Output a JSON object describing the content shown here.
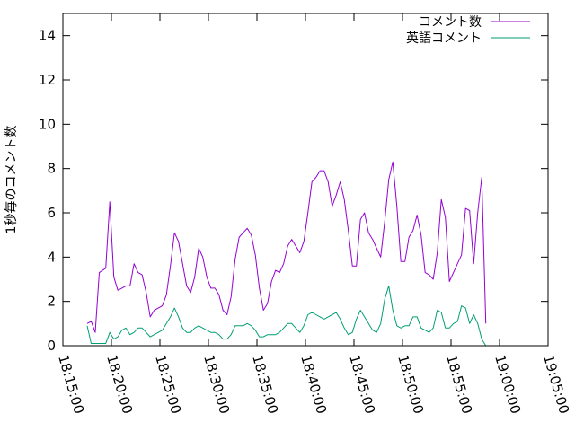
{
  "chart_data": {
    "type": "line",
    "title": "",
    "xlabel": "",
    "ylabel": "1秒毎のコメント数",
    "xlim": [
      "18:15:00",
      "19:05:00"
    ],
    "ylim": [
      0,
      15
    ],
    "x_ticks": [
      "18:15:00",
      "18:20:00",
      "18:25:00",
      "18:30:00",
      "18:35:00",
      "18:40:00",
      "18:45:00",
      "18:50:00",
      "18:55:00",
      "19:00:00",
      "19:05:00"
    ],
    "y_ticks": [
      "0",
      "2",
      "4",
      "6",
      "8",
      "10",
      "12",
      "14"
    ],
    "grid": false,
    "legend_position": "top-right",
    "colors": {
      "series1": "#9400d3",
      "series2": "#009e73"
    },
    "series": [
      {
        "name": "コメント数",
        "points": [
          [
            "18:17:30",
            1.0
          ],
          [
            "18:17:55",
            1.1
          ],
          [
            "18:18:20",
            0.6
          ],
          [
            "18:18:45",
            3.3
          ],
          [
            "18:19:25",
            3.5
          ],
          [
            "18:19:50",
            6.5
          ],
          [
            "18:20:15",
            3.1
          ],
          [
            "18:20:40",
            2.5
          ],
          [
            "18:21:05",
            2.6
          ],
          [
            "18:21:30",
            2.7
          ],
          [
            "18:21:55",
            2.7
          ],
          [
            "18:22:20",
            3.7
          ],
          [
            "18:22:45",
            3.3
          ],
          [
            "18:23:10",
            3.2
          ],
          [
            "18:23:35",
            2.4
          ],
          [
            "18:24:00",
            1.3
          ],
          [
            "18:24:25",
            1.6
          ],
          [
            "18:24:50",
            1.7
          ],
          [
            "18:25:15",
            1.8
          ],
          [
            "18:25:40",
            2.3
          ],
          [
            "18:26:05",
            3.6
          ],
          [
            "18:26:30",
            5.1
          ],
          [
            "18:26:55",
            4.7
          ],
          [
            "18:27:20",
            3.7
          ],
          [
            "18:27:45",
            2.7
          ],
          [
            "18:28:10",
            2.4
          ],
          [
            "18:28:35",
            3.1
          ],
          [
            "18:29:00",
            4.4
          ],
          [
            "18:29:25",
            4.0
          ],
          [
            "18:29:50",
            3.1
          ],
          [
            "18:30:15",
            2.6
          ],
          [
            "18:30:40",
            2.6
          ],
          [
            "18:31:05",
            2.3
          ],
          [
            "18:31:30",
            1.6
          ],
          [
            "18:31:55",
            1.4
          ],
          [
            "18:32:20",
            2.2
          ],
          [
            "18:32:45",
            3.9
          ],
          [
            "18:33:10",
            4.9
          ],
          [
            "18:33:35",
            5.1
          ],
          [
            "18:34:00",
            5.3
          ],
          [
            "18:34:25",
            5.0
          ],
          [
            "18:34:50",
            4.1
          ],
          [
            "18:35:15",
            2.6
          ],
          [
            "18:35:40",
            1.6
          ],
          [
            "18:36:05",
            1.9
          ],
          [
            "18:36:30",
            2.9
          ],
          [
            "18:36:55",
            3.4
          ],
          [
            "18:37:20",
            3.3
          ],
          [
            "18:37:45",
            3.7
          ],
          [
            "18:38:10",
            4.5
          ],
          [
            "18:38:35",
            4.8
          ],
          [
            "18:39:00",
            4.5
          ],
          [
            "18:39:25",
            4.2
          ],
          [
            "18:39:50",
            4.7
          ],
          [
            "18:40:15",
            6.0
          ],
          [
            "18:40:40",
            7.4
          ],
          [
            "18:41:05",
            7.6
          ],
          [
            "18:41:30",
            7.9
          ],
          [
            "18:41:55",
            7.9
          ],
          [
            "18:42:20",
            7.4
          ],
          [
            "18:42:45",
            6.3
          ],
          [
            "18:43:10",
            6.8
          ],
          [
            "18:43:35",
            7.4
          ],
          [
            "18:44:00",
            6.6
          ],
          [
            "18:44:25",
            5.2
          ],
          [
            "18:44:50",
            3.6
          ],
          [
            "18:45:15",
            3.6
          ],
          [
            "18:45:40",
            5.7
          ],
          [
            "18:46:05",
            6.0
          ],
          [
            "18:46:30",
            5.1
          ],
          [
            "18:46:55",
            4.8
          ],
          [
            "18:47:20",
            4.4
          ],
          [
            "18:47:45",
            4.0
          ],
          [
            "18:48:10",
            5.6
          ],
          [
            "18:48:35",
            7.5
          ],
          [
            "18:49:00",
            8.3
          ],
          [
            "18:49:25",
            6.3
          ],
          [
            "18:49:50",
            3.8
          ],
          [
            "18:50:15",
            3.8
          ],
          [
            "18:50:40",
            4.9
          ],
          [
            "18:51:05",
            5.2
          ],
          [
            "18:51:30",
            5.9
          ],
          [
            "18:51:55",
            5.0
          ],
          [
            "18:52:20",
            3.3
          ],
          [
            "18:52:45",
            3.2
          ],
          [
            "18:53:10",
            3.0
          ],
          [
            "18:53:35",
            4.2
          ],
          [
            "18:54:00",
            6.6
          ],
          [
            "18:54:25",
            5.8
          ],
          [
            "18:54:50",
            2.9
          ],
          [
            "18:55:15",
            3.3
          ],
          [
            "18:55:40",
            3.7
          ],
          [
            "18:56:05",
            4.1
          ],
          [
            "18:56:30",
            6.2
          ],
          [
            "18:56:55",
            6.1
          ],
          [
            "18:57:20",
            3.7
          ],
          [
            "18:57:45",
            6.0
          ],
          [
            "18:58:10",
            7.6
          ],
          [
            "18:58:35",
            1.0
          ]
        ]
      },
      {
        "name": "英語コメント",
        "points": [
          [
            "18:17:30",
            0.9
          ],
          [
            "18:17:55",
            0.1
          ],
          [
            "18:18:20",
            0.1
          ],
          [
            "18:18:45",
            0.1
          ],
          [
            "18:19:25",
            0.1
          ],
          [
            "18:19:50",
            0.6
          ],
          [
            "18:20:15",
            0.3
          ],
          [
            "18:20:40",
            0.4
          ],
          [
            "18:21:05",
            0.7
          ],
          [
            "18:21:30",
            0.8
          ],
          [
            "18:21:55",
            0.5
          ],
          [
            "18:22:20",
            0.6
          ],
          [
            "18:22:45",
            0.8
          ],
          [
            "18:23:10",
            0.8
          ],
          [
            "18:23:35",
            0.6
          ],
          [
            "18:24:00",
            0.4
          ],
          [
            "18:24:25",
            0.5
          ],
          [
            "18:24:50",
            0.6
          ],
          [
            "18:25:15",
            0.7
          ],
          [
            "18:25:40",
            1.0
          ],
          [
            "18:26:05",
            1.3
          ],
          [
            "18:26:30",
            1.7
          ],
          [
            "18:26:55",
            1.3
          ],
          [
            "18:27:20",
            0.8
          ],
          [
            "18:27:45",
            0.6
          ],
          [
            "18:28:10",
            0.6
          ],
          [
            "18:28:35",
            0.8
          ],
          [
            "18:29:00",
            0.9
          ],
          [
            "18:29:25",
            0.8
          ],
          [
            "18:29:50",
            0.7
          ],
          [
            "18:30:15",
            0.6
          ],
          [
            "18:30:40",
            0.6
          ],
          [
            "18:31:05",
            0.5
          ],
          [
            "18:31:30",
            0.3
          ],
          [
            "18:31:55",
            0.3
          ],
          [
            "18:32:20",
            0.5
          ],
          [
            "18:32:45",
            0.9
          ],
          [
            "18:33:10",
            0.9
          ],
          [
            "18:33:35",
            0.9
          ],
          [
            "18:34:00",
            1.0
          ],
          [
            "18:34:25",
            0.9
          ],
          [
            "18:34:50",
            0.7
          ],
          [
            "18:35:15",
            0.4
          ],
          [
            "18:35:40",
            0.4
          ],
          [
            "18:36:05",
            0.5
          ],
          [
            "18:36:30",
            0.5
          ],
          [
            "18:36:55",
            0.5
          ],
          [
            "18:37:20",
            0.6
          ],
          [
            "18:37:45",
            0.8
          ],
          [
            "18:38:10",
            1.0
          ],
          [
            "18:38:35",
            1.0
          ],
          [
            "18:39:00",
            0.8
          ],
          [
            "18:39:25",
            0.6
          ],
          [
            "18:39:50",
            0.9
          ],
          [
            "18:40:15",
            1.4
          ],
          [
            "18:40:40",
            1.5
          ],
          [
            "18:41:05",
            1.4
          ],
          [
            "18:41:30",
            1.3
          ],
          [
            "18:41:55",
            1.2
          ],
          [
            "18:42:20",
            1.3
          ],
          [
            "18:42:45",
            1.4
          ],
          [
            "18:43:10",
            1.5
          ],
          [
            "18:43:35",
            1.2
          ],
          [
            "18:44:00",
            0.8
          ],
          [
            "18:44:25",
            0.5
          ],
          [
            "18:44:50",
            0.6
          ],
          [
            "18:45:15",
            1.2
          ],
          [
            "18:45:40",
            1.6
          ],
          [
            "18:46:05",
            1.3
          ],
          [
            "18:46:30",
            1.0
          ],
          [
            "18:46:55",
            0.7
          ],
          [
            "18:47:20",
            0.6
          ],
          [
            "18:47:45",
            1.0
          ],
          [
            "18:48:10",
            2.1
          ],
          [
            "18:48:35",
            2.7
          ],
          [
            "18:49:00",
            1.6
          ],
          [
            "18:49:25",
            0.9
          ],
          [
            "18:49:50",
            0.8
          ],
          [
            "18:50:15",
            0.9
          ],
          [
            "18:50:40",
            0.9
          ],
          [
            "18:51:05",
            1.3
          ],
          [
            "18:51:30",
            1.3
          ],
          [
            "18:51:55",
            0.8
          ],
          [
            "18:52:20",
            0.7
          ],
          [
            "18:52:45",
            0.6
          ],
          [
            "18:53:10",
            0.8
          ],
          [
            "18:53:35",
            1.6
          ],
          [
            "18:54:00",
            1.5
          ],
          [
            "18:54:25",
            0.8
          ],
          [
            "18:54:50",
            0.8
          ],
          [
            "18:55:15",
            1.0
          ],
          [
            "18:55:40",
            1.1
          ],
          [
            "18:56:05",
            1.8
          ],
          [
            "18:56:30",
            1.7
          ],
          [
            "18:56:55",
            1.0
          ],
          [
            "18:57:20",
            1.4
          ],
          [
            "18:57:45",
            1.0
          ],
          [
            "18:58:10",
            0.3
          ],
          [
            "18:58:35",
            0.0
          ]
        ]
      }
    ]
  }
}
